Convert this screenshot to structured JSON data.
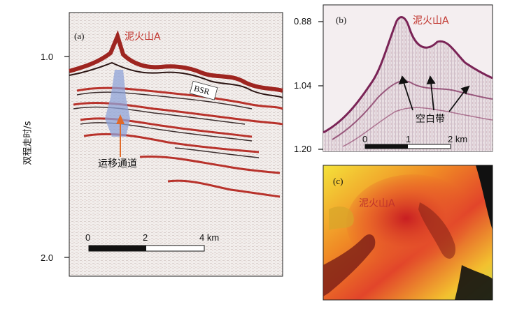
{
  "yaxis_title": "双程走时/s",
  "panel_a": {
    "tag": "(a)",
    "volcano_label": "泥火山A",
    "bsr_label": "BSR",
    "channel_label": "运移通道",
    "ticks": [
      "1.0",
      "2.0"
    ],
    "scale": {
      "labels": [
        "0",
        "2",
        "4 km"
      ]
    }
  },
  "panel_b": {
    "tag": "(b)",
    "volcano_label": "泥火山A",
    "blank_label": "空白带",
    "ticks": [
      "0.88",
      "1.04",
      "1.20"
    ],
    "scale": {
      "labels": [
        "0",
        "1",
        "2 km"
      ]
    }
  },
  "panel_c": {
    "tag": "(c)",
    "volcano_label": "泥火山A"
  },
  "colors": {
    "seismic_red": "#b8322b",
    "label_red": "#c0322b",
    "channel_blue": "#8fa3d8",
    "arrow_orange": "#e06a2a"
  }
}
